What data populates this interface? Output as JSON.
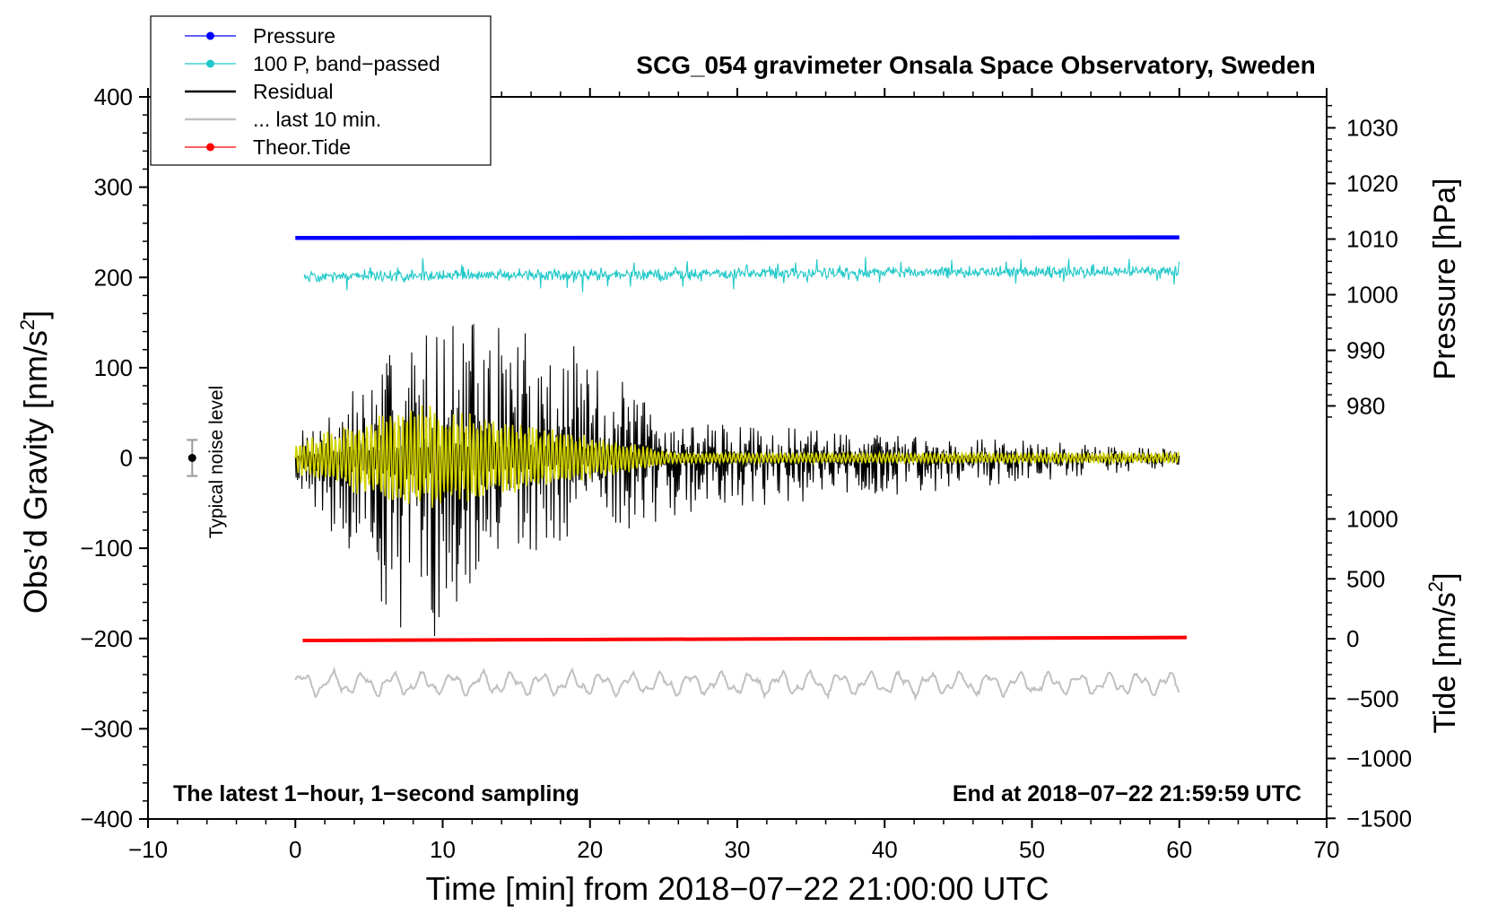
{
  "chart_data": {
    "type": "line",
    "title": "SCG_054 gravimeter Onsala Space Observatory, Sweden",
    "xlabel": "Time [min] from 2018−07−22 21:00:00 UTC",
    "ylabel": "Obs’d Gravity [nm/s",
    "ylabel_sup": "2",
    "ylabel_close": "]",
    "xlim": [
      -10,
      70
    ],
    "ylim": [
      -400,
      400
    ],
    "x_ticks": [
      "−10",
      "0",
      "10",
      "20",
      "30",
      "40",
      "50",
      "60",
      "70"
    ],
    "y_ticks": [
      "400",
      "300",
      "200",
      "100",
      "0",
      "−100",
      "−200",
      "−300",
      "−400"
    ],
    "pressure_axis": {
      "label": "Pressure [hPa]",
      "ticks": [
        "1030",
        "1020",
        "1010",
        "1000",
        "990",
        "980"
      ],
      "values": [
        1030,
        1020,
        1010,
        1000,
        990,
        980
      ]
    },
    "tide_axis": {
      "label": "Tide [nm/s",
      "label_sup": "2",
      "label_close": "]",
      "ticks": [
        "1000",
        "500",
        "0",
        "−500",
        "−1000",
        "−1500"
      ],
      "values": [
        1000,
        500,
        0,
        -500,
        -1000,
        -1500
      ]
    },
    "legend": [
      {
        "name": "Pressure",
        "color": "#0000ff",
        "marker": true
      },
      {
        "name": "100 P, band−passed",
        "color": "#20c8c8",
        "marker": true
      },
      {
        "name": "Residual",
        "color": "#000000",
        "marker": false
      },
      {
        "name": "... last 10 min.",
        "color": "#c0c0c0",
        "marker": false
      },
      {
        "name": "Theor.Tide",
        "color": "#ff0000",
        "marker": true
      }
    ],
    "legend_position": "top-left",
    "series": [
      {
        "name": "Pressure",
        "axis": "pressure_hPa",
        "x": [
          0,
          60
        ],
        "values": [
          1010.2,
          1010.3
        ]
      },
      {
        "name": "100 P, band−passed",
        "axis": "gravity_offset",
        "offset": 200,
        "x": [
          0,
          60
        ],
        "approx_amplitude": 10
      },
      {
        "name": "Residual",
        "axis": "gravity",
        "x": [
          0,
          8.2,
          9.6,
          12,
          17.2,
          26,
          60
        ],
        "envelope_max": [
          25,
          145,
          153,
          155,
          145,
          40,
          10
        ],
        "envelope_min": [
          -25,
          -215,
          -200,
          -165,
          -100,
          -65,
          -10
        ]
      },
      {
        "name": "... last 10 min.",
        "axis": "gravity_offset",
        "offset": -250,
        "x": [
          0,
          60
        ],
        "approx_amplitude": 15
      },
      {
        "name": "Theor.Tide",
        "axis": "tide",
        "x": [
          0.5,
          60.5
        ],
        "values": [
          -15,
          10
        ]
      }
    ],
    "noise_level": {
      "label": "Typical noise level",
      "x": -7,
      "value": 0,
      "range": [
        -20,
        20
      ]
    },
    "annotations": {
      "bottom_left": "The latest 1−hour, 1−second sampling",
      "bottom_right": "End at 2018−07−22 21:59:59 UTC"
    },
    "colors": {
      "pressure": "#0000ff",
      "band": "#20c8c8",
      "residual": "#000000",
      "yellow": "#d4d400",
      "last10": "#c0c0c0",
      "tide": "#ff0000"
    }
  }
}
